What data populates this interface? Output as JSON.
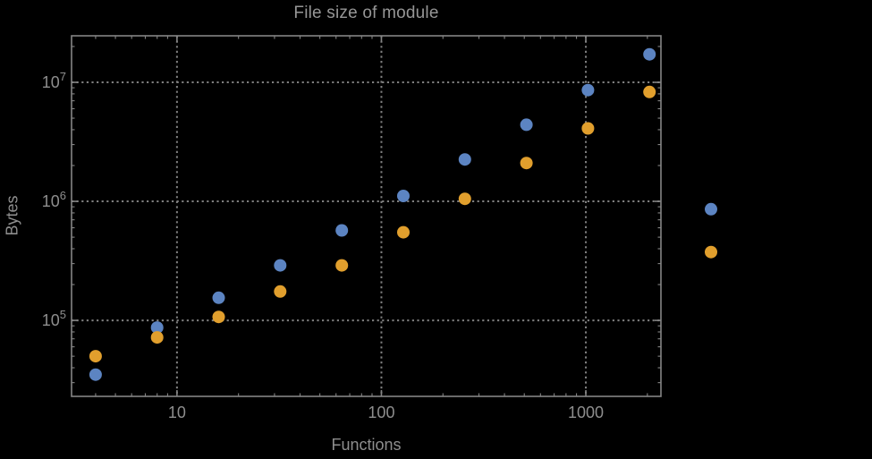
{
  "chart_data": {
    "type": "scatter",
    "title": "File size of module",
    "xlabel": "Functions",
    "ylabel": "Bytes",
    "x_scale": "log",
    "y_scale": "log",
    "xlim": [
      3.05,
      2330
    ],
    "ylim": [
      23000,
      24600000
    ],
    "grid": "dotted-at-major-ticks",
    "legend": "none",
    "x": [
      4,
      8,
      16,
      32,
      64,
      128,
      256,
      512,
      1024,
      2048,
      4096
    ],
    "series": [
      {
        "name": "series-blue",
        "color": "#5C84C2",
        "values": [
          35000,
          87000,
          155000,
          290000,
          570000,
          1110000,
          2250000,
          4400000,
          8600000,
          17200000,
          860000
        ]
      },
      {
        "name": "series-orange",
        "color": "#E19F2D",
        "values": [
          50000,
          72000,
          107000,
          175000,
          290000,
          550000,
          1050000,
          2100000,
          4100000,
          8300000,
          375000
        ]
      }
    ],
    "x_ticks": [
      {
        "value": 10,
        "label": "10"
      },
      {
        "value": 100,
        "label": "100"
      },
      {
        "value": 1000,
        "label": "1000"
      }
    ],
    "y_ticks": [
      {
        "value": 100000,
        "mantissa": "10",
        "exponent": "5"
      },
      {
        "value": 1000000,
        "mantissa": "10",
        "exponent": "6"
      },
      {
        "value": 10000000,
        "mantissa": "10",
        "exponent": "7"
      }
    ],
    "marker_diameter_px": 14
  },
  "style": {
    "background": "#000000",
    "frame_color": "#858585",
    "grid_color": "#7f7f7f",
    "text_color": "#8e8e8e",
    "title_color": "#969696"
  }
}
